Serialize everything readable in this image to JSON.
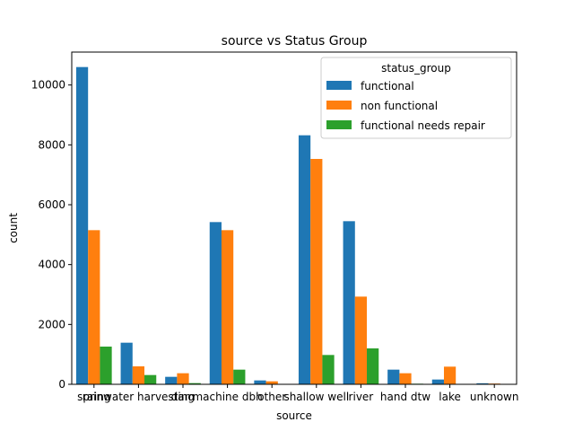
{
  "chart_data": {
    "type": "bar",
    "title": "source vs Status Group",
    "xlabel": "source",
    "ylabel": "count",
    "ylim": [
      0,
      11100
    ],
    "yticks": [
      0,
      2000,
      4000,
      6000,
      8000,
      10000
    ],
    "grid": false,
    "legend": {
      "title": "status_group",
      "placement": "top-right"
    },
    "categories": [
      "spring",
      "rainwater harvesting",
      "dam",
      "machine dbh",
      "other",
      "shallow well",
      "river",
      "hand dtw",
      "lake",
      "unknown"
    ],
    "series": [
      {
        "name": "functional",
        "color": "#1f77b4",
        "values": [
          10600,
          1390,
          250,
          5420,
          130,
          8320,
          5450,
          490,
          160,
          35
        ]
      },
      {
        "name": "non functional",
        "color": "#ff7f0e",
        "values": [
          5150,
          600,
          370,
          5150,
          100,
          7530,
          2930,
          370,
          590,
          25
        ]
      },
      {
        "name": "functional needs repair",
        "color": "#2ca02c",
        "values": [
          1260,
          310,
          40,
          490,
          15,
          980,
          1200,
          20,
          10,
          5
        ]
      }
    ]
  }
}
